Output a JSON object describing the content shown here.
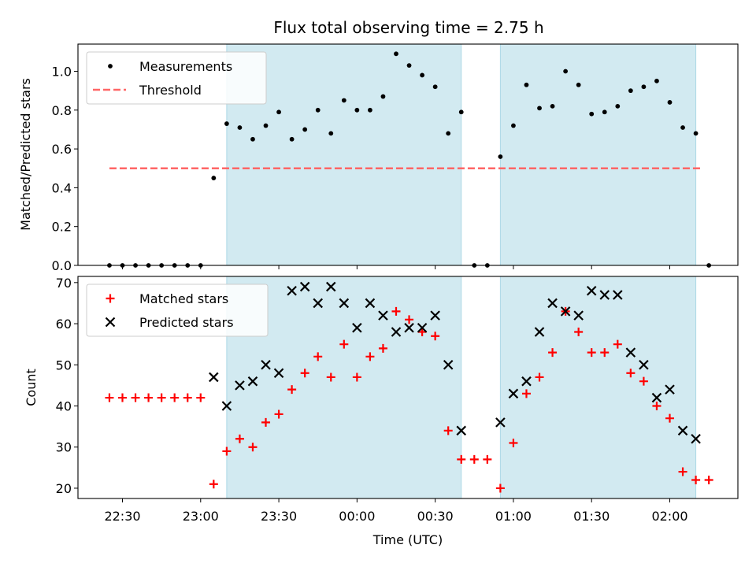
{
  "title": "Flux total observing time = 2.75 h",
  "colors": {
    "band": "#add8e6",
    "threshold": "#ff6666",
    "matched": "#ff0000",
    "predicted": "#000000",
    "measurement": "#000000"
  },
  "chart_data": [
    {
      "type": "scatter",
      "ylabel": "Matched/Predicted stars",
      "xlabel": "",
      "ylim": [
        0,
        1.14
      ],
      "yticks": [
        "0.0",
        "0.2",
        "0.4",
        "0.6",
        "0.8",
        "1.0"
      ],
      "xticks_shown": false,
      "legend": "top-left",
      "shaded_intervals": [
        [
          "23:10",
          "00:40"
        ],
        [
          "00:55",
          "02:10"
        ]
      ],
      "threshold": {
        "name": "Threshold",
        "value": 0.5,
        "x_range": [
          "22:25",
          "02:12"
        ],
        "style": "dashed"
      },
      "series": [
        {
          "name": "Measurements",
          "marker": "dot",
          "x": [
            "22:25",
            "22:30",
            "22:35",
            "22:40",
            "22:45",
            "22:50",
            "22:55",
            "23:00",
            "23:05",
            "23:10",
            "23:15",
            "23:20",
            "23:25",
            "23:30",
            "23:35",
            "23:40",
            "23:45",
            "23:50",
            "23:55",
            "00:00",
            "00:05",
            "00:10",
            "00:15",
            "00:20",
            "00:25",
            "00:30",
            "00:35",
            "00:40",
            "00:45",
            "00:50",
            "00:55",
            "01:00",
            "01:05",
            "01:10",
            "01:15",
            "01:20",
            "01:25",
            "01:30",
            "01:35",
            "01:40",
            "01:45",
            "01:50",
            "01:55",
            "02:00",
            "02:05",
            "02:10",
            "02:15"
          ],
          "values": [
            0,
            0,
            0,
            0,
            0,
            0,
            0,
            0,
            0.45,
            0.73,
            0.71,
            0.65,
            0.72,
            0.79,
            0.65,
            0.7,
            0.8,
            0.68,
            0.85,
            0.8,
            0.8,
            0.87,
            1.09,
            1.03,
            0.98,
            0.92,
            0.68,
            0.79,
            0,
            0,
            0.56,
            0.72,
            0.93,
            0.81,
            0.82,
            1.0,
            0.93,
            0.78,
            0.79,
            0.82,
            0.9,
            0.92,
            0.95,
            0.84,
            0.71,
            0.68,
            0
          ]
        }
      ]
    },
    {
      "type": "scatter",
      "xlabel": "Time (UTC)",
      "ylabel": "Count",
      "ylim": [
        17.5,
        71.5
      ],
      "yticks": [
        "20",
        "30",
        "40",
        "50",
        "60",
        "70"
      ],
      "xticks": [
        "22:30",
        "23:00",
        "23:30",
        "00:00",
        "00:30",
        "01:00",
        "01:30",
        "02:00"
      ],
      "legend": "top-left",
      "shaded_intervals": [
        [
          "23:10",
          "00:40"
        ],
        [
          "00:55",
          "02:10"
        ]
      ],
      "series": [
        {
          "name": "Matched stars",
          "marker": "plus",
          "x": [
            "22:25",
            "22:30",
            "22:35",
            "22:40",
            "22:45",
            "22:50",
            "22:55",
            "23:00",
            "23:05",
            "23:10",
            "23:15",
            "23:20",
            "23:25",
            "23:30",
            "23:35",
            "23:40",
            "23:45",
            "23:50",
            "23:55",
            "00:00",
            "00:05",
            "00:10",
            "00:15",
            "00:20",
            "00:25",
            "00:30",
            "00:35",
            "00:40",
            "00:45",
            "00:50",
            "00:55",
            "01:00",
            "01:05",
            "01:10",
            "01:15",
            "01:20",
            "01:25",
            "01:30",
            "01:35",
            "01:40",
            "01:45",
            "01:50",
            "01:55",
            "02:00",
            "02:05",
            "02:10",
            "02:15"
          ],
          "values": [
            42,
            42,
            42,
            42,
            42,
            42,
            42,
            42,
            21,
            29,
            32,
            30,
            36,
            38,
            44,
            48,
            52,
            47,
            55,
            47,
            52,
            54,
            63,
            61,
            58,
            57,
            34,
            27,
            27,
            27,
            20,
            31,
            43,
            47,
            53,
            63,
            58,
            53,
            53,
            55,
            48,
            46,
            40,
            37,
            24,
            22,
            22
          ]
        },
        {
          "name": "Predicted stars",
          "marker": "x",
          "x": [
            "23:05",
            "23:10",
            "23:15",
            "23:20",
            "23:25",
            "23:30",
            "23:35",
            "23:40",
            "23:45",
            "23:50",
            "23:55",
            "00:00",
            "00:05",
            "00:10",
            "00:15",
            "00:20",
            "00:25",
            "00:30",
            "00:35",
            "00:40",
            "00:55",
            "01:00",
            "01:05",
            "01:10",
            "01:15",
            "01:20",
            "01:25",
            "01:30",
            "01:35",
            "01:40",
            "01:45",
            "01:50",
            "01:55",
            "02:00",
            "02:05",
            "02:10"
          ],
          "values": [
            47,
            40,
            45,
            46,
            50,
            48,
            68,
            69,
            65,
            69,
            65,
            59,
            65,
            62,
            58,
            59,
            59,
            62,
            50,
            34,
            36,
            43,
            46,
            58,
            65,
            63,
            62,
            68,
            67,
            67,
            53,
            50,
            42,
            44,
            34,
            32
          ]
        }
      ]
    }
  ]
}
